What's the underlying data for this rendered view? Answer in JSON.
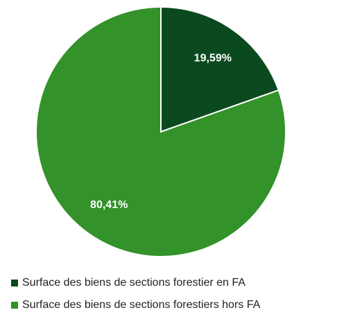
{
  "chart_data": {
    "type": "pie",
    "categories": [
      "Surface des biens de sections forestier en FA",
      "Surface des biens de sections forestiers hors FA"
    ],
    "values": [
      19.59,
      80.41
    ],
    "value_labels": [
      "19,59%",
      "80,41%"
    ],
    "colors": [
      "#0b4a1e",
      "#339229"
    ]
  }
}
